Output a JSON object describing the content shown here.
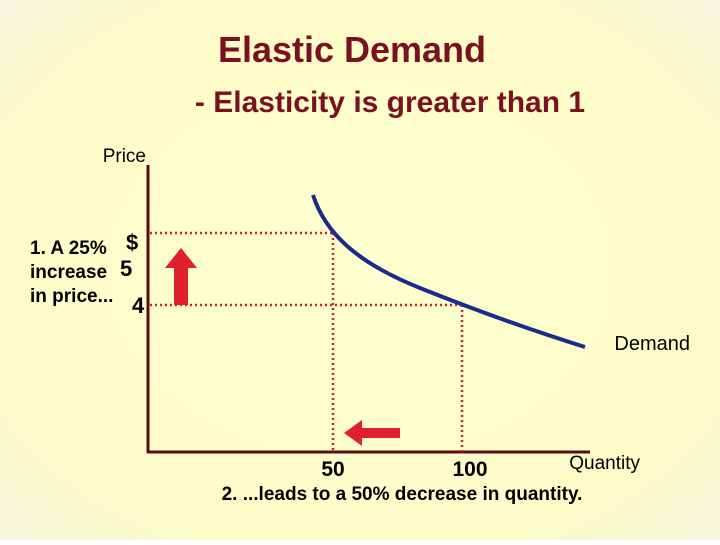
{
  "title": "Elastic Demand",
  "subtitle": "- Elasticity is greater than 1",
  "axes": {
    "y_label": "Price",
    "x_label": "Quantity"
  },
  "price_ticks": {
    "currency": "$",
    "high": "5",
    "low": "4"
  },
  "quantity_ticks": {
    "low": "50",
    "high": "100"
  },
  "curve_label": "Demand",
  "notes": {
    "step1_line1": "1. A 25%",
    "step1_line2": "increase",
    "step1_line3": "in price...",
    "step2": "2. ...leads to a 50% decrease in quantity."
  }
}
